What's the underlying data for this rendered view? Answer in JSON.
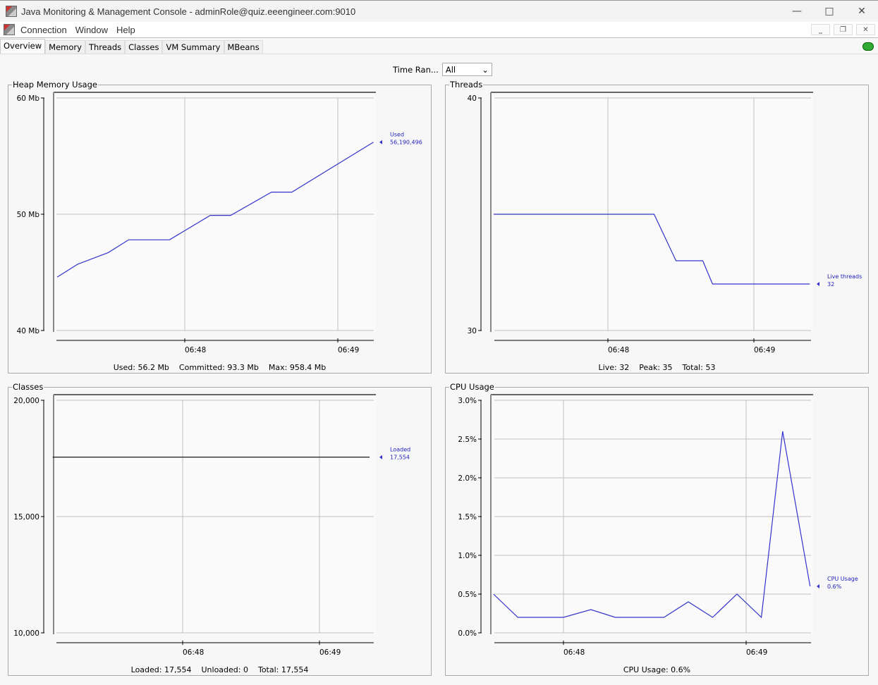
{
  "window": {
    "title": "Java Monitoring & Management Console - adminRole@quiz.eeengineer.com:9010"
  },
  "menu": [
    "Connection",
    "Window",
    "Help"
  ],
  "tabs": [
    {
      "label": "Overview",
      "active": true
    },
    {
      "label": "Memory"
    },
    {
      "label": "Threads"
    },
    {
      "label": "Classes"
    },
    {
      "label": "VM Summary"
    },
    {
      "label": "MBeans"
    }
  ],
  "time_range": {
    "label": "Time Ran...",
    "value": "All"
  },
  "colors": {
    "series": "#3333cc",
    "classes_series": "#000000",
    "grid": "#c0c0c0"
  },
  "panels": {
    "heap": {
      "title": "Heap Memory Usage",
      "footer": [
        "Used: 56.2 Mb",
        "Committed: 93.3 Mb",
        "Max: 958.4 Mb"
      ]
    },
    "threads": {
      "title": "Threads",
      "footer": [
        "Live: 32",
        "Peak: 35",
        "Total: 53"
      ]
    },
    "classes": {
      "title": "Classes",
      "footer": [
        "Loaded: 17,554",
        "Unloaded: 0",
        "Total: 17,554"
      ]
    },
    "cpu": {
      "title": "CPU Usage",
      "footer": [
        "CPU Usage: 0.6%"
      ]
    }
  },
  "chart_data": [
    {
      "type": "line",
      "title": "Heap Memory Usage",
      "ylim": [
        40,
        60
      ],
      "yticks": [
        "40 Mb",
        "50 Mb",
        "60 Mb"
      ],
      "ytick_values": [
        40,
        50,
        60
      ],
      "xticks": [
        "06:48",
        "06:49"
      ],
      "grid": true,
      "series": [
        {
          "name": "Used",
          "value_label": "56,190,496",
          "color": "#3333cc",
          "points": [
            [
              "06:47:10",
              44.6
            ],
            [
              "06:47:18",
              45.7
            ],
            [
              "06:47:30",
              46.7
            ],
            [
              "06:47:38",
              47.8
            ],
            [
              "06:47:54",
              47.8
            ],
            [
              "06:48:10",
              49.9
            ],
            [
              "06:48:18",
              49.9
            ],
            [
              "06:48:34",
              51.9
            ],
            [
              "06:48:42",
              51.9
            ],
            [
              "06:49:14",
              56.2
            ]
          ]
        }
      ]
    },
    {
      "type": "line",
      "title": "Threads",
      "ylim": [
        30,
        40
      ],
      "yticks": [
        "30",
        "40"
      ],
      "ytick_values": [
        30,
        40
      ],
      "xticks": [
        "06:48",
        "06:49"
      ],
      "grid": true,
      "series": [
        {
          "name": "Live threads",
          "value_label": "32",
          "color": "#3333cc",
          "points": [
            [
              "06:47:13",
              35
            ],
            [
              "06:48:19",
              35
            ],
            [
              "06:48:28",
              33
            ],
            [
              "06:48:39",
              33
            ],
            [
              "06:48:43",
              32
            ],
            [
              "06:49:23",
              32
            ]
          ]
        }
      ]
    },
    {
      "type": "line",
      "title": "Classes",
      "ylim": [
        10000,
        20000
      ],
      "yticks": [
        "10,000",
        "15,000",
        "20,000"
      ],
      "ytick_values": [
        10000,
        15000,
        20000
      ],
      "xticks": [
        "06:48",
        "06:49"
      ],
      "grid": true,
      "series": [
        {
          "name": "Loaded",
          "value_label": "17,554",
          "color": "#000000",
          "points": [
            [
              "06:47:03",
              17554
            ],
            [
              "06:49:22",
              17554
            ]
          ]
        }
      ]
    },
    {
      "type": "line",
      "title": "CPU Usage",
      "ylim": [
        0,
        3
      ],
      "yticks": [
        "0.0%",
        "0.5%",
        "1.0%",
        "1.5%",
        "2.0%",
        "2.5%",
        "3.0%"
      ],
      "ytick_values": [
        0,
        0.5,
        1,
        1.5,
        2,
        2.5,
        3
      ],
      "xticks": [
        "06:48",
        "06:49"
      ],
      "grid": true,
      "series": [
        {
          "name": "CPU Usage",
          "value_label": "0.6%",
          "color": "#3333cc",
          "points": [
            [
              "06:47:37",
              0.5
            ],
            [
              "06:47:45",
              0.2
            ],
            [
              "06:48:00",
              0.2
            ],
            [
              "06:48:09",
              0.3
            ],
            [
              "06:48:17",
              0.2
            ],
            [
              "06:48:33",
              0.2
            ],
            [
              "06:48:41",
              0.4
            ],
            [
              "06:48:49",
              0.2
            ],
            [
              "06:48:57",
              0.5
            ],
            [
              "06:49:05",
              0.2
            ],
            [
              "06:49:12",
              2.6
            ],
            [
              "06:49:21",
              0.6
            ]
          ]
        }
      ]
    }
  ]
}
